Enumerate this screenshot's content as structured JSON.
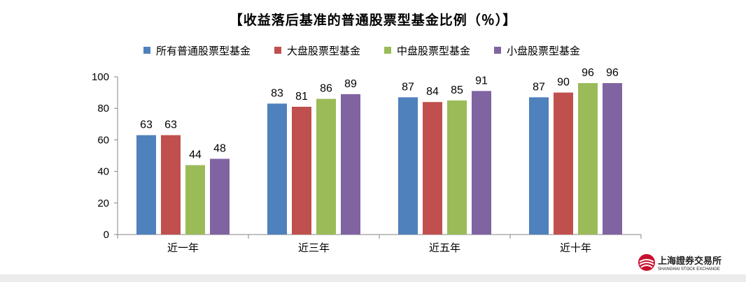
{
  "title": "【收益落后基准的普通股票型基金比例（％）】",
  "logo": {
    "name_cn": "上海證券交易所",
    "name_en": "SHANGHAI STOCK EXCHANGE"
  },
  "chart_data": {
    "type": "bar",
    "title": "【收益落后基准的普通股票型基金比例（％）】",
    "categories": [
      "近一年",
      "近三年",
      "近五年",
      "近十年"
    ],
    "series": [
      {
        "name": "所有普通股票型基金",
        "color": "#4F81BD",
        "values": [
          63,
          83,
          87,
          87
        ]
      },
      {
        "name": "大盘股票型基金",
        "color": "#C0504D",
        "values": [
          63,
          81,
          84,
          90
        ]
      },
      {
        "name": "中盘股票型基金",
        "color": "#9BBB59",
        "values": [
          44,
          86,
          85,
          96
        ]
      },
      {
        "name": "小盘股票型基金",
        "color": "#8064A2",
        "values": [
          48,
          89,
          91,
          96
        ]
      }
    ],
    "ylim": [
      0,
      100
    ],
    "yticks": [
      0,
      20,
      40,
      60,
      80,
      100
    ],
    "xlabel": "",
    "ylabel": "",
    "grid": false,
    "legend": "top"
  }
}
